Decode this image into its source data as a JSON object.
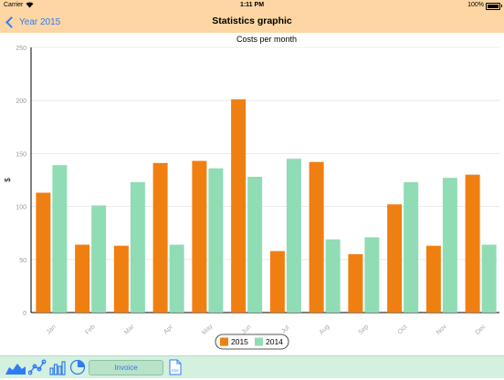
{
  "status": {
    "carrier": "Carrier",
    "time": "1:11 PM",
    "battery": "100%"
  },
  "nav": {
    "back_label": "Year 2015",
    "title": "Statistics graphic"
  },
  "toolbar": {
    "invoice_label": "Invoice",
    "pdf_label": "PDF"
  },
  "colors": {
    "series_2015": "#f07f12",
    "series_2014": "#90dcb5",
    "accent": "#2f7cf6"
  },
  "chart_data": {
    "type": "bar",
    "title": "Costs per month",
    "ylabel": "$",
    "xlabel": "",
    "ylim": [
      0,
      250
    ],
    "yticks": [
      0,
      50,
      100,
      150,
      200,
      250
    ],
    "categories": [
      "Jan",
      "Feb",
      "Mar",
      "Apr",
      "May",
      "Jun",
      "Jul",
      "Aug",
      "Sep",
      "Oct",
      "Nov",
      "Dec"
    ],
    "series": [
      {
        "name": "2015",
        "values": [
          113,
          64,
          63,
          141,
          143,
          201,
          58,
          142,
          55,
          102,
          63,
          130
        ]
      },
      {
        "name": "2014",
        "values": [
          139,
          101,
          123,
          64,
          136,
          128,
          145,
          69,
          71,
          123,
          127,
          64
        ]
      }
    ],
    "legend_position": "bottom-center",
    "grid": true
  }
}
